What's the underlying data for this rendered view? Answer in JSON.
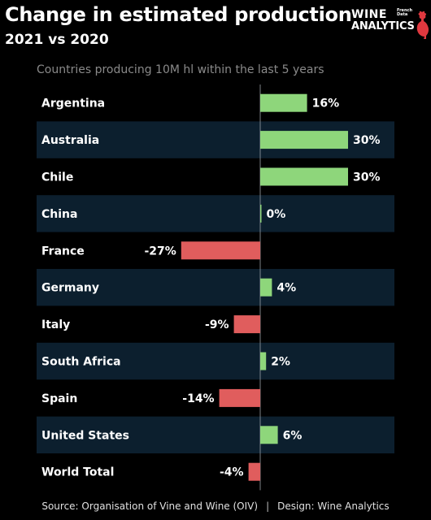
{
  "title": "Change in estimated production",
  "subtitle": "2021 vs 2020",
  "logo": {
    "line1": "WINE",
    "line2": "ANALYTICS",
    "tagline": "French Data"
  },
  "chart_note": "Countries producing 10M hl within the last 5 years",
  "colors": {
    "background": "#000000",
    "row_band": "#0c1f2e",
    "positive": "#8ed67b",
    "negative": "#e05d5d",
    "zero_line": "#9aa0a6",
    "text": "#ffffff"
  },
  "chart_data": {
    "type": "bar",
    "orientation": "horizontal",
    "title": "Change in estimated production",
    "subtitle": "2021 vs 2020",
    "unit": "%",
    "categories": [
      "Argentina",
      "Australia",
      "Chile",
      "China",
      "France",
      "Germany",
      "Italy",
      "South Africa",
      "Spain",
      "United States",
      "World Total"
    ],
    "values": [
      16,
      30,
      30,
      0,
      -27,
      4,
      -9,
      2,
      -14,
      6,
      -4
    ],
    "data_labels": [
      "16%",
      "30%",
      "30%",
      "0%",
      "-27%",
      "4%",
      "-9%",
      "2%",
      "-14%",
      "6%",
      "-4%"
    ],
    "xlim": [
      -30,
      30
    ],
    "grid": false,
    "legend": "none"
  },
  "footer": {
    "source": "Source: Organisation of Vine and Wine (OIV)",
    "separator": "|",
    "design": "Design: Wine Analytics"
  }
}
